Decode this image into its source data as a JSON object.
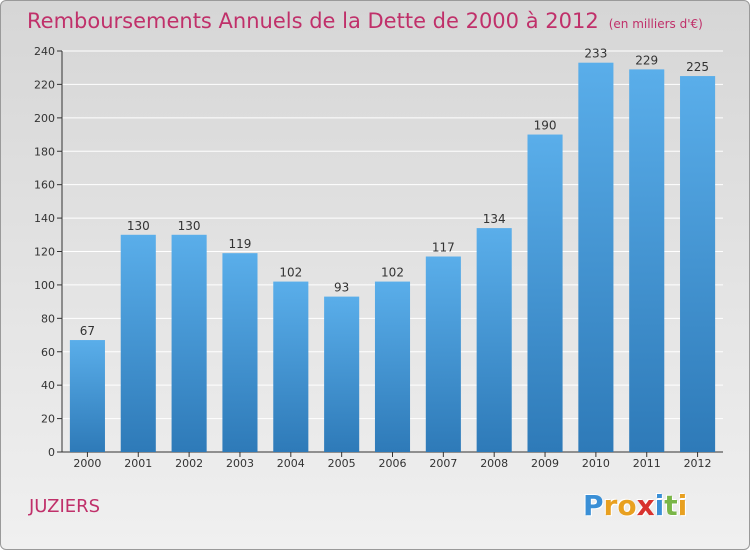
{
  "header": {
    "title": "Remboursements Annuels de la Dette de 2000 à 2012",
    "unit": "(en milliers d'€)"
  },
  "footer": {
    "commune": "JUZIERS",
    "logo_letters": [
      "P",
      "r",
      "o",
      "x",
      "i",
      "t",
      "i"
    ],
    "logo_colors": [
      "#3a8fd6",
      "#e8a020",
      "#e8a020",
      "#d8322e",
      "#3a8fd6",
      "#7ab648",
      "#e8a020"
    ]
  },
  "colors": {
    "bar_light": "#5aaeea",
    "bar_dark": "#2e7ab8",
    "title": "#c0306a"
  },
  "chart_data": {
    "type": "bar",
    "categories": [
      "2000",
      "2001",
      "2002",
      "2003",
      "2004",
      "2005",
      "2006",
      "2007",
      "2008",
      "2009",
      "2010",
      "2011",
      "2012"
    ],
    "values": [
      67,
      130,
      130,
      119,
      102,
      93,
      102,
      117,
      134,
      190,
      233,
      229,
      225
    ],
    "title": "Remboursements Annuels de la Dette de 2000 à 2012",
    "xlabel": "",
    "ylabel": "",
    "ylim": [
      0,
      240
    ],
    "yticks": [
      0,
      20,
      40,
      60,
      80,
      100,
      120,
      140,
      160,
      180,
      200,
      220,
      240
    ],
    "grid": true,
    "legend": "none"
  }
}
